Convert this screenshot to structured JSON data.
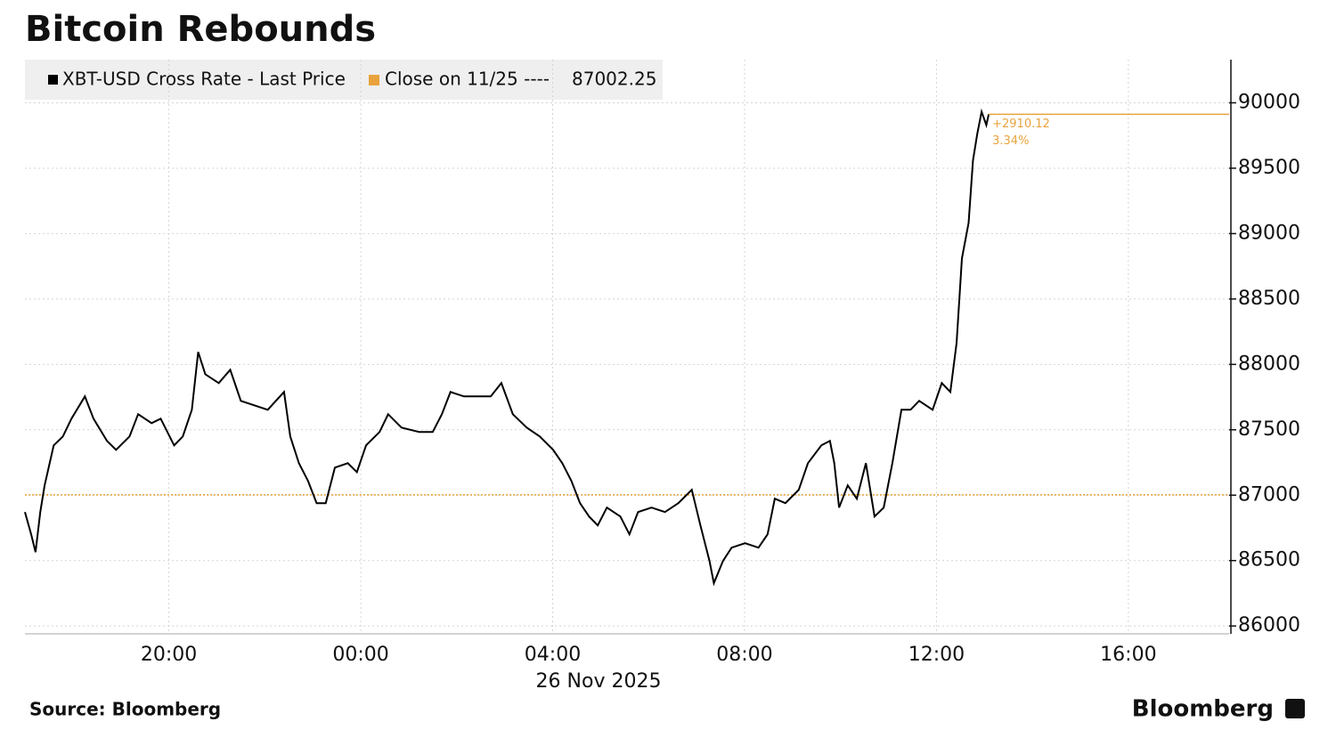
{
  "chart_data": {
    "type": "line",
    "title": "Bitcoin Rebounds",
    "source": "Source: Bloomberg",
    "brand": "Bloomberg",
    "xlabel": "26 Nov 2025",
    "series": [
      {
        "name": "XBT-USD Cross Rate - Last Price",
        "color": "#000000",
        "x": [
          17.0,
          17.13,
          17.22,
          17.32,
          17.41,
          17.6,
          17.79,
          17.97,
          18.25,
          18.43,
          18.71,
          18.9,
          19.18,
          19.36,
          19.64,
          19.83,
          20.11,
          20.29,
          20.48,
          20.61,
          20.76,
          21.04,
          21.28,
          21.5,
          21.78,
          22.06,
          22.4,
          22.53,
          22.71,
          22.9,
          23.08,
          23.27,
          23.46,
          23.73,
          23.92,
          24.11,
          24.39,
          24.57,
          24.85,
          25.22,
          25.5,
          25.69,
          25.87,
          26.15,
          26.43,
          26.71,
          26.93,
          27.17,
          27.46,
          27.73,
          28.01,
          28.2,
          28.39,
          28.57,
          28.76,
          28.94,
          29.13,
          29.41,
          29.6,
          29.78,
          30.06,
          30.34,
          30.62,
          30.9,
          31.08,
          31.27,
          31.36,
          31.55,
          31.73,
          32.01,
          32.29,
          32.48,
          32.63,
          32.85,
          33.13,
          33.32,
          33.6,
          33.78,
          33.87,
          33.97,
          34.15,
          34.34,
          34.53,
          34.71,
          34.9,
          35.08,
          35.27,
          35.46,
          35.64,
          35.92,
          36.11,
          36.29,
          36.42,
          36.53,
          36.67,
          36.76,
          36.85,
          36.94,
          37.04,
          37.09
        ],
        "values": [
          86871,
          86700,
          86565,
          86870,
          87075,
          87381,
          87449,
          87585,
          87755,
          87585,
          87415,
          87347,
          87449,
          87619,
          87551,
          87585,
          87381,
          87449,
          87653,
          88095,
          87925,
          87857,
          87959,
          87721,
          87687,
          87653,
          87789,
          87449,
          87245,
          87109,
          86939,
          86939,
          87211,
          87245,
          87177,
          87381,
          87483,
          87619,
          87517,
          87483,
          87483,
          87619,
          87789,
          87755,
          87755,
          87755,
          87857,
          87619,
          87517,
          87449,
          87347,
          87245,
          87109,
          86939,
          86837,
          86769,
          86905,
          86837,
          86701,
          86871,
          86905,
          86871,
          86939,
          87041,
          86769,
          86497,
          86327,
          86497,
          86599,
          86633,
          86599,
          86701,
          86973,
          86939,
          87041,
          87245,
          87381,
          87415,
          87245,
          86905,
          87075,
          86973,
          87245,
          86837,
          86905,
          87245,
          87653,
          87653,
          87721,
          87653,
          87857,
          87789,
          88163,
          88810,
          89082,
          89558,
          89762,
          89932,
          89830,
          89912.37
        ]
      },
      {
        "name": "Close on 11/25 ----",
        "color": "#e8a33d",
        "reference_value": 87002.25
      }
    ],
    "change": {
      "value": 2910.12,
      "label": "+2910.12"
    },
    "change_pct": {
      "value": 3.34,
      "label": "3.34%"
    },
    "xlim": [
      17,
      42.1
    ],
    "xticks": [
      {
        "value": 20,
        "label": "20:00"
      },
      {
        "value": 24,
        "label": "00:00"
      },
      {
        "value": 28,
        "label": "04:00"
      },
      {
        "value": 32,
        "label": "08:00"
      },
      {
        "value": 36,
        "label": "12:00"
      },
      {
        "value": 40,
        "label": "16:00"
      }
    ],
    "ylim": [
      85940,
      90330
    ],
    "yticks": [
      86000,
      86500,
      87000,
      87500,
      88000,
      88500,
      89000,
      89500,
      90000
    ],
    "grid": true
  }
}
